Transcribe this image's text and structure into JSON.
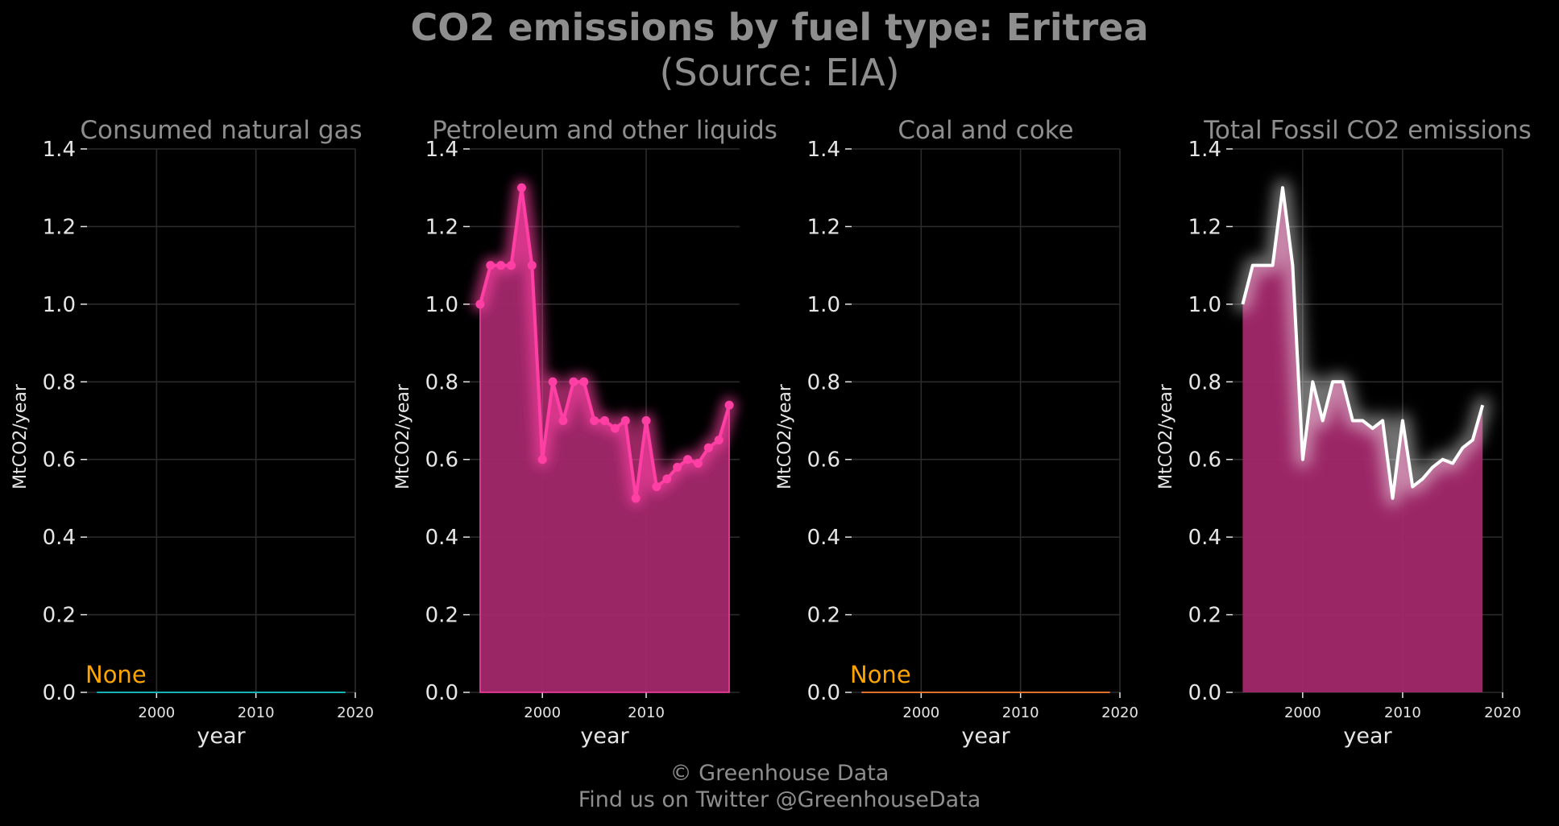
{
  "title": {
    "line1": "CO2 emissions by fuel type: Eritrea",
    "line2": "(Source: EIA)"
  },
  "footer": {
    "line1": "© Greenhouse Data",
    "line2": "Find us on Twitter @GreenhouseData"
  },
  "colors": {
    "background": "#000000",
    "grid": "#2b2b2b",
    "tick_text": "#e6e6e6",
    "subtitle_text": "#8e8e8e",
    "natural_gas": "#17b3b3",
    "petroleum": "#ff3fa4",
    "petroleum_fill": "#a3286b",
    "coal": "#e0712b",
    "total_line": "#ffffff",
    "none_label": "#ffa500"
  },
  "chart_data": [
    {
      "type": "line",
      "title": "Consumed natural gas",
      "xlabel": "year",
      "ylabel": "MtCO2/year",
      "xlim": [
        1993,
        2020
      ],
      "ylim": [
        0,
        1.4
      ],
      "xticks": [
        2000,
        2010,
        2020
      ],
      "yticks": [
        0.0,
        0.2,
        0.4,
        0.6,
        0.8,
        1.0,
        1.2,
        1.4
      ],
      "grid": true,
      "color_key": "natural_gas",
      "annotation": "None",
      "series": [
        {
          "x": [
            1994,
            2019
          ],
          "values": [
            0,
            0
          ]
        }
      ]
    },
    {
      "type": "area",
      "title": "Petroleum and other liquids",
      "xlabel": "year",
      "ylabel": "MtCO2/year",
      "xlim": [
        1993,
        2019
      ],
      "ylim": [
        0,
        1.4
      ],
      "xticks": [
        2000,
        2010
      ],
      "yticks": [
        0.0,
        0.2,
        0.4,
        0.6,
        0.8,
        1.0,
        1.2,
        1.4
      ],
      "grid": true,
      "color_key": "petroleum",
      "markers": true,
      "series": [
        {
          "x": [
            1994,
            1995,
            1996,
            1997,
            1998,
            1999,
            2000,
            2001,
            2002,
            2003,
            2004,
            2005,
            2006,
            2007,
            2008,
            2009,
            2010,
            2011,
            2012,
            2013,
            2014,
            2015,
            2016,
            2017,
            2018
          ],
          "values": [
            1.0,
            1.1,
            1.1,
            1.1,
            1.3,
            1.1,
            0.6,
            0.8,
            0.7,
            0.8,
            0.8,
            0.7,
            0.7,
            0.68,
            0.7,
            0.5,
            0.7,
            0.53,
            0.55,
            0.58,
            0.6,
            0.59,
            0.63,
            0.65,
            0.74
          ]
        }
      ]
    },
    {
      "type": "line",
      "title": "Coal and coke",
      "xlabel": "year",
      "ylabel": "MtCO2/year",
      "xlim": [
        1993,
        2020
      ],
      "ylim": [
        0,
        1.4
      ],
      "xticks": [
        2000,
        2010,
        2020
      ],
      "yticks": [
        0.0,
        0.2,
        0.4,
        0.6,
        0.8,
        1.0,
        1.2,
        1.4
      ],
      "grid": true,
      "color_key": "coal",
      "annotation": "None",
      "series": [
        {
          "x": [
            1994,
            2019
          ],
          "values": [
            0,
            0
          ]
        }
      ]
    },
    {
      "type": "area",
      "title": "Total Fossil CO2 emissions",
      "xlabel": "year",
      "ylabel": "MtCO2/year",
      "xlim": [
        1993,
        2020
      ],
      "ylim": [
        0,
        1.4
      ],
      "xticks": [
        2000,
        2010,
        2020
      ],
      "yticks": [
        0.0,
        0.2,
        0.4,
        0.6,
        0.8,
        1.0,
        1.2,
        1.4
      ],
      "grid": true,
      "color_key": "total_line",
      "markers": false,
      "series": [
        {
          "x": [
            1994,
            1995,
            1996,
            1997,
            1998,
            1999,
            2000,
            2001,
            2002,
            2003,
            2004,
            2005,
            2006,
            2007,
            2008,
            2009,
            2010,
            2011,
            2012,
            2013,
            2014,
            2015,
            2016,
            2017,
            2018
          ],
          "values": [
            1.0,
            1.1,
            1.1,
            1.1,
            1.3,
            1.1,
            0.6,
            0.8,
            0.7,
            0.8,
            0.8,
            0.7,
            0.7,
            0.68,
            0.7,
            0.5,
            0.7,
            0.53,
            0.55,
            0.58,
            0.6,
            0.59,
            0.63,
            0.65,
            0.74
          ]
        }
      ]
    }
  ]
}
